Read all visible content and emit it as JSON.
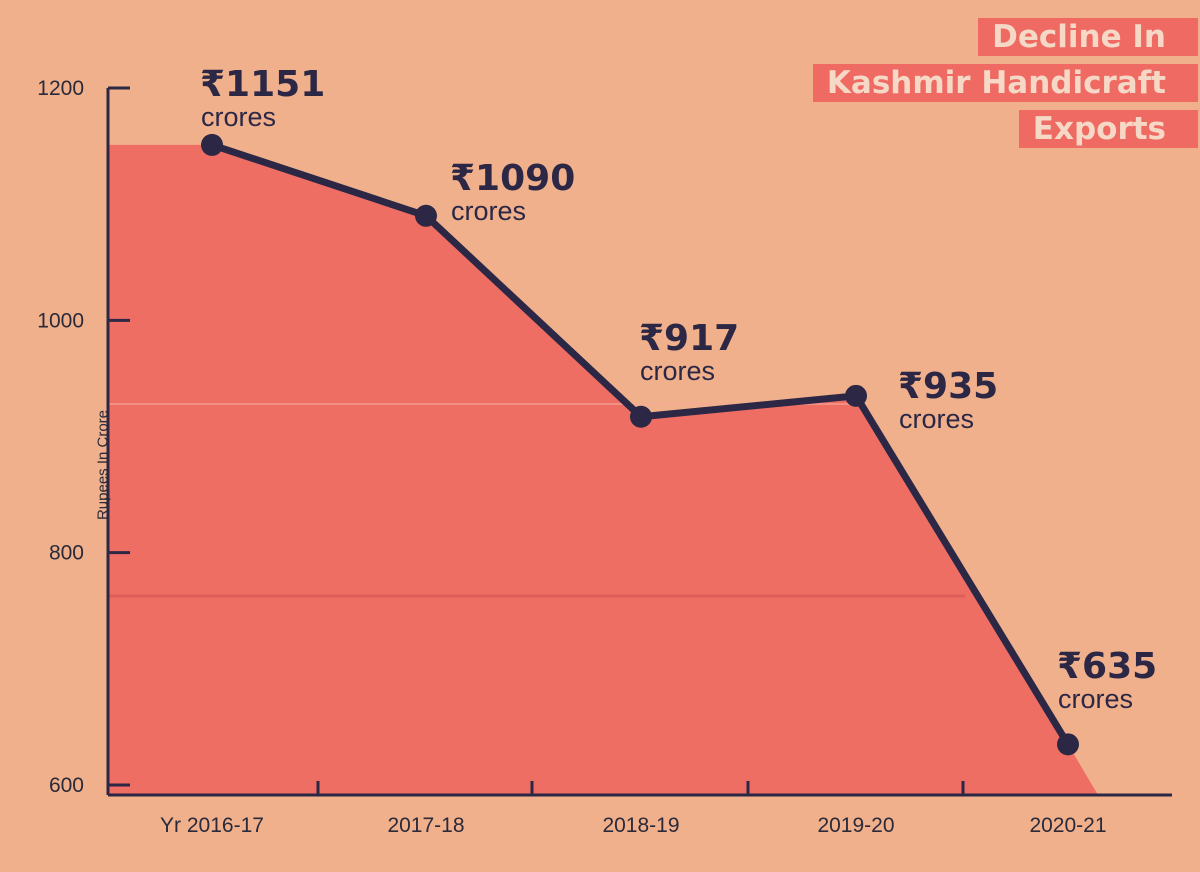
{
  "chart_data": {
    "type": "line",
    "title_lines": [
      "Decline In",
      "Kashmir Handicraft",
      "Exports"
    ],
    "ylabel": "Rupees In Crore",
    "xlabel": "",
    "categories": [
      "Yr 2016-17",
      "2017-18",
      "2018-19",
      "2019-20",
      "2020-21"
    ],
    "values": [
      1151,
      1090,
      917,
      935,
      635
    ],
    "value_labels": [
      "₹1151",
      "₹1090",
      "₹917",
      "₹935",
      "₹635"
    ],
    "unit_label": "crores",
    "yticks": [
      "1200",
      "1000",
      "800",
      "600"
    ],
    "ylim": [
      600,
      1200
    ],
    "grid": false,
    "area_fill": true,
    "colors": {
      "background": "#f0b08c",
      "area": "#ee6a62",
      "line": "#2b2745",
      "title_bg": "#ee6a62",
      "title_text": "#f6d8c6"
    }
  }
}
